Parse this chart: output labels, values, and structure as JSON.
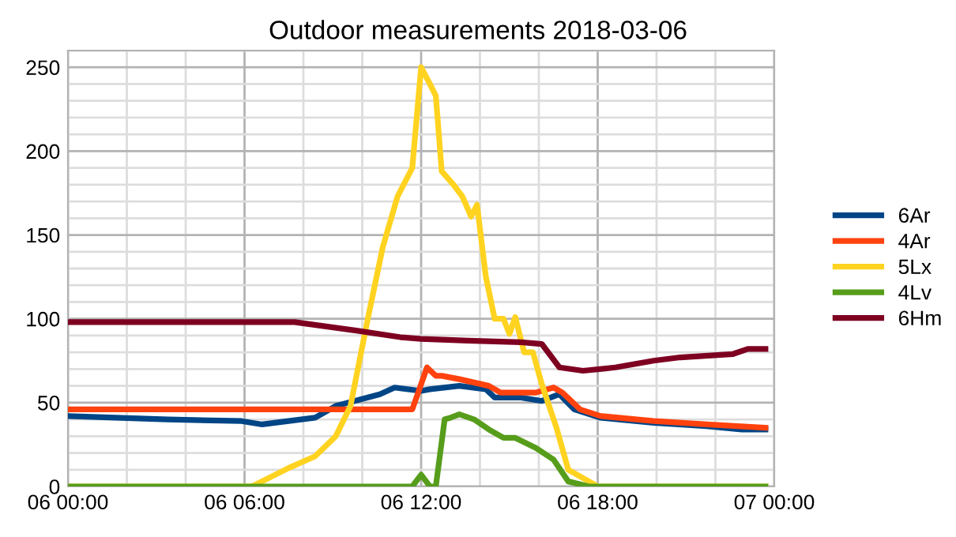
{
  "chart_data": {
    "type": "line",
    "title": "Outdoor measurements 2018-03-06",
    "xlim": [
      "2018-03-06T00:00",
      "2018-03-07T00:00"
    ],
    "xticks": [
      {
        "value": "2018-03-06T00:00",
        "label": "06 00:00"
      },
      {
        "value": "2018-03-06T06:00",
        "label": "06 06:00"
      },
      {
        "value": "2018-03-06T12:00",
        "label": "06 12:00"
      },
      {
        "value": "2018-03-06T18:00",
        "label": "06 18:00"
      },
      {
        "value": "2018-03-07T00:00",
        "label": "07 00:00"
      }
    ],
    "ylim": [
      0,
      260
    ],
    "yticks": [
      0,
      50,
      100,
      150,
      200,
      250
    ],
    "grid": true,
    "legend": "right",
    "marker": "none",
    "line_style": "solid",
    "series": [
      {
        "name": "6Ar",
        "color": "#004586",
        "x": [
          "2018-03-06T00:00",
          "2018-03-06T03:24",
          "2018-03-06T05:54",
          "2018-03-06T06:36",
          "2018-03-06T08:24",
          "2018-03-06T09:06",
          "2018-03-06T10:36",
          "2018-03-06T11:06",
          "2018-03-06T12:00",
          "2018-03-06T12:18",
          "2018-03-06T13:18",
          "2018-03-06T14:12",
          "2018-03-06T14:30",
          "2018-03-06T15:24",
          "2018-03-06T16:06",
          "2018-03-06T16:42",
          "2018-03-06T17:12",
          "2018-03-06T18:06",
          "2018-03-06T19:54",
          "2018-03-06T21:42",
          "2018-03-06T22:54",
          "2018-03-06T23:42"
        ],
        "values": [
          42,
          40,
          39,
          37,
          41,
          48,
          55,
          59,
          57,
          58,
          60,
          58,
          53,
          53,
          51,
          55,
          46,
          41,
          38,
          36,
          34,
          34
        ]
      },
      {
        "name": "4Ar",
        "color": "#ff420e",
        "x": [
          "2018-03-06T00:00",
          "2018-03-06T11:42",
          "2018-03-06T12:12",
          "2018-03-06T12:30",
          "2018-03-06T12:42",
          "2018-03-06T13:18",
          "2018-03-06T14:18",
          "2018-03-06T14:42",
          "2018-03-06T15:54",
          "2018-03-06T16:30",
          "2018-03-06T16:48",
          "2018-03-06T17:24",
          "2018-03-06T18:06",
          "2018-03-06T19:54",
          "2018-03-06T21:42",
          "2018-03-06T23:42"
        ],
        "values": [
          46,
          46,
          71,
          66,
          66,
          64,
          60,
          56,
          56,
          59,
          56,
          46,
          42,
          39,
          37,
          35
        ]
      },
      {
        "name": "5Lx",
        "color": "#ffd320",
        "x": [
          "2018-03-06T00:00",
          "2018-03-06T06:15",
          "2018-03-06T07:30",
          "2018-03-06T08:24",
          "2018-03-06T09:06",
          "2018-03-06T09:36",
          "2018-03-06T10:12",
          "2018-03-06T10:42",
          "2018-03-06T11:12",
          "2018-03-06T11:42",
          "2018-03-06T12:00",
          "2018-03-06T12:18",
          "2018-03-06T12:30",
          "2018-03-06T12:42",
          "2018-03-06T13:06",
          "2018-03-06T13:24",
          "2018-03-06T13:42",
          "2018-03-06T13:54",
          "2018-03-06T14:12",
          "2018-03-06T14:30",
          "2018-03-06T14:48",
          "2018-03-06T15:00",
          "2018-03-06T15:12",
          "2018-03-06T15:30",
          "2018-03-06T15:48",
          "2018-03-06T16:06",
          "2018-03-06T16:36",
          "2018-03-06T17:00",
          "2018-03-06T17:30",
          "2018-03-06T18:00",
          "2018-03-06T23:42"
        ],
        "values": [
          0,
          0,
          11,
          18,
          30,
          48,
          101,
          143,
          173,
          190,
          250,
          240,
          233,
          188,
          180,
          173,
          161,
          168,
          125,
          100,
          100,
          91,
          101,
          80,
          80,
          61,
          35,
          10,
          5,
          0,
          0
        ]
      },
      {
        "name": "4Lv",
        "color": "#579d1c",
        "x": [
          "2018-03-06T00:00",
          "2018-03-06T11:42",
          "2018-03-06T12:00",
          "2018-03-06T12:18",
          "2018-03-06T12:30",
          "2018-03-06T12:48",
          "2018-03-06T13:00",
          "2018-03-06T13:18",
          "2018-03-06T13:48",
          "2018-03-06T14:18",
          "2018-03-06T14:48",
          "2018-03-06T15:12",
          "2018-03-06T15:54",
          "2018-03-06T16:30",
          "2018-03-06T17:00",
          "2018-03-06T17:42",
          "2018-03-06T23:42"
        ],
        "values": [
          0,
          0,
          7,
          0,
          0,
          40,
          41,
          43,
          40,
          34,
          29,
          29,
          23,
          16,
          3,
          0,
          0
        ]
      },
      {
        "name": "6Hm",
        "color": "#7e0021",
        "x": [
          "2018-03-06T00:00",
          "2018-03-06T07:42",
          "2018-03-06T09:48",
          "2018-03-06T11:18",
          "2018-03-06T12:00",
          "2018-03-06T13:36",
          "2018-03-06T15:24",
          "2018-03-06T16:06",
          "2018-03-06T16:42",
          "2018-03-06T17:30",
          "2018-03-06T18:36",
          "2018-03-06T19:54",
          "2018-03-06T20:48",
          "2018-03-06T22:36",
          "2018-03-06T23:06",
          "2018-03-06T23:42"
        ],
        "values": [
          98,
          98,
          93,
          89,
          88,
          87,
          86,
          85,
          71,
          69,
          71,
          75,
          77,
          79,
          82,
          82
        ]
      }
    ]
  }
}
